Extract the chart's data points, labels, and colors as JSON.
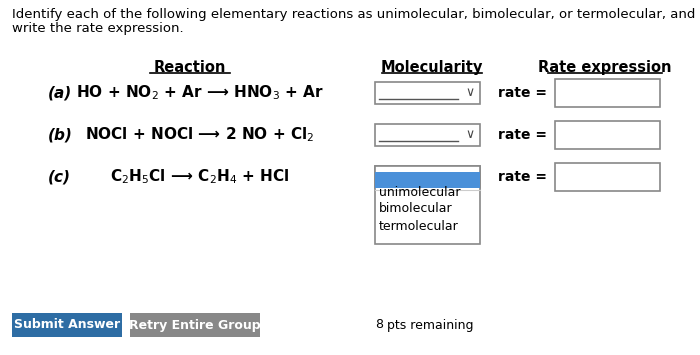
{
  "title_line1": "Identify each of the following elementary reactions as unimolecular, bimolecular, or termolecular, and",
  "title_line2": "write the rate expression.",
  "col_reaction": "Reaction",
  "col_molecularity": "Molecularity",
  "col_rate": "Rate expression",
  "reactions": [
    {
      "label": "(a)",
      "eq": "HO + NO$_2$ + Ar ⟶ HNO$_3$ + Ar"
    },
    {
      "label": "(b)",
      "eq": "NOCl + NOCl ⟶ 2 NO + Cl$_2$"
    },
    {
      "label": "(c)",
      "eq": "C$_2$H$_5$Cl ⟶ C$_2$H$_4$ + HCl"
    }
  ],
  "dropdown_items": [
    "unimolecular",
    "bimolecular",
    "termolecular"
  ],
  "dropdown_open_row": 2,
  "selected_highlight_color": "#4a90d9",
  "bg_color": "#ffffff",
  "submit_btn_color": "#2e6da4",
  "retry_btn_color": "#888888",
  "submit_btn_text": "Submit Answer",
  "retry_btn_text": "Retry Entire Group",
  "pts_text": "8",
  "pts_text2": " pts remaining",
  "font_size": 9.5,
  "header_font_size": 10.5,
  "reaction_font_size": 11,
  "label_font_size": 11,
  "dropdown_font_size": 9,
  "btn_font_size": 9
}
